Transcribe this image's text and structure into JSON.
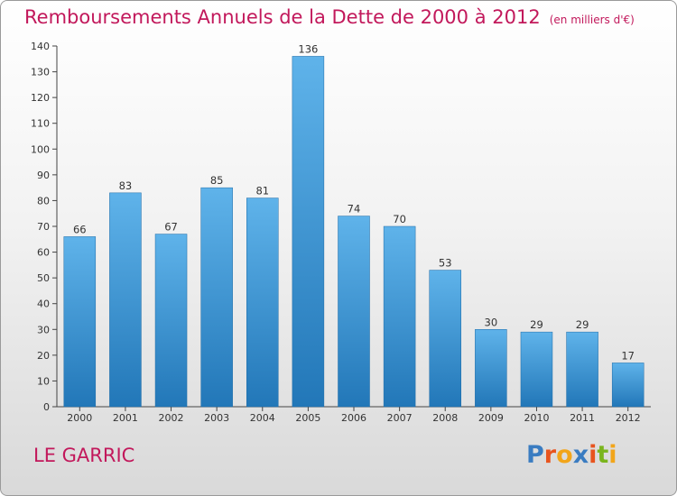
{
  "header": {
    "title": "Remboursements Annuels de la Dette de 2000 à 2012",
    "unit": "(en milliers d'€)"
  },
  "footer": {
    "commune": "LE GARRIC",
    "brand": "Proxiti",
    "brand_colors": [
      "#3a7cc1",
      "#e8541e",
      "#f2a51a",
      "#3a7cc1",
      "#e8541e",
      "#7ab51d",
      "#f2a51a"
    ]
  },
  "colors": {
    "title": "#c2185b",
    "bar_top": "#5fb3ea",
    "bar_bottom": "#2277b8"
  },
  "chart_data": {
    "type": "bar",
    "title": "Remboursements Annuels de la Dette de 2000 à 2012",
    "xlabel": "",
    "ylabel": "",
    "categories": [
      "2000",
      "2001",
      "2002",
      "2003",
      "2004",
      "2005",
      "2006",
      "2007",
      "2008",
      "2009",
      "2010",
      "2011",
      "2012"
    ],
    "values": [
      66,
      83,
      67,
      85,
      81,
      136,
      74,
      70,
      53,
      30,
      29,
      29,
      17
    ],
    "ylim": [
      0,
      140
    ],
    "yticks": [
      0,
      10,
      20,
      30,
      40,
      50,
      60,
      70,
      80,
      90,
      100,
      110,
      120,
      130,
      140
    ],
    "grid": false,
    "legend": "none"
  }
}
